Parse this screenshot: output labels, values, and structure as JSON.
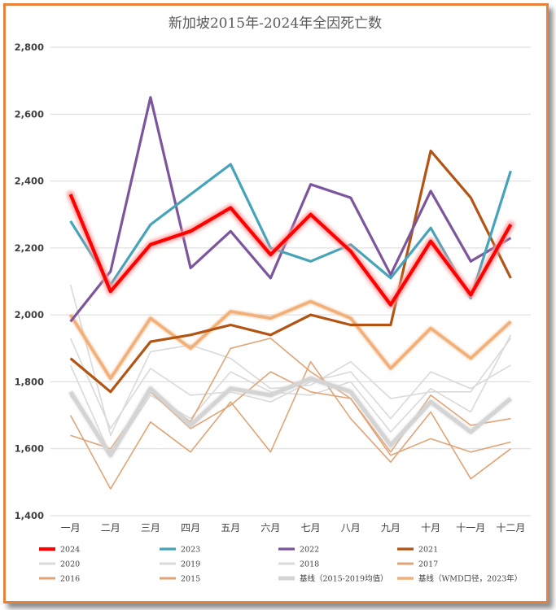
{
  "chart_data": {
    "type": "line",
    "title": "新加坡2015年-2024年全因死亡数",
    "xlabel": "",
    "ylabel": "",
    "ylim": [
      1400,
      2800
    ],
    "yticks": [
      1400,
      1600,
      1800,
      2000,
      2200,
      2400,
      2600,
      2800
    ],
    "ytick_labels": [
      "1,400",
      "1,600",
      "1,800",
      "2,000",
      "2,200",
      "2,400",
      "2,600",
      "2,800"
    ],
    "grid": true,
    "legend_position": "bottom",
    "categories": [
      "一月",
      "二月",
      "三月",
      "四月",
      "五月",
      "六月",
      "七月",
      "八月",
      "九月",
      "十月",
      "十一月",
      "十二月"
    ],
    "series": [
      {
        "name": "2020",
        "color": "#d9d9d9",
        "values": [
          2090,
          1640,
          1890,
          1910,
          1870,
          1780,
          1790,
          1860,
          1750,
          1770,
          1770,
          1930
        ]
      },
      {
        "name": "2019",
        "color": "#d9d9d9",
        "values": [
          1930,
          1660,
          1840,
          1760,
          1770,
          1740,
          1800,
          1830,
          1690,
          1830,
          1780,
          1850
        ]
      },
      {
        "name": "2018",
        "color": "#d9d9d9",
        "values": [
          1850,
          1580,
          1760,
          1690,
          1830,
          1770,
          1760,
          1800,
          1650,
          1780,
          1710,
          1940
        ]
      },
      {
        "name": "2017",
        "color": "#e0a477",
        "values": [
          1760,
          1590,
          1770,
          1680,
          1900,
          1930,
          1830,
          1750,
          1590,
          1760,
          1670,
          1690
        ]
      },
      {
        "name": "2016",
        "color": "#e0a477",
        "values": [
          1700,
          1480,
          1680,
          1590,
          1740,
          1590,
          1860,
          1690,
          1560,
          1710,
          1510,
          1600
        ]
      },
      {
        "name": "2015",
        "color": "#e0a477",
        "values": [
          1640,
          1600,
          1770,
          1660,
          1730,
          1830,
          1770,
          1750,
          1580,
          1630,
          1590,
          1620
        ]
      },
      {
        "name": "基线（2015-2019均值）",
        "color": "#d4d4d4",
        "values": [
          1770,
          1580,
          1780,
          1670,
          1780,
          1760,
          1810,
          1770,
          1610,
          1740,
          1650,
          1750
        ]
      },
      {
        "name": "基线（WMD口径，2023年）",
        "color": "#f1b07a",
        "values": [
          2000,
          1810,
          1990,
          1900,
          2010,
          1990,
          2040,
          1990,
          1840,
          1960,
          1870,
          1980
        ]
      },
      {
        "name": "2021",
        "color": "#b35414",
        "values": [
          1870,
          1770,
          1920,
          1940,
          1970,
          1940,
          2000,
          1970,
          1970,
          2490,
          2350,
          2110
        ]
      },
      {
        "name": "2022",
        "color": "#7c559d",
        "values": [
          1980,
          2130,
          2650,
          2140,
          2250,
          2110,
          2390,
          2350,
          2120,
          2370,
          2160,
          2230
        ]
      },
      {
        "name": "2023",
        "color": "#45a3ba",
        "values": [
          2280,
          2090,
          2270,
          2360,
          2450,
          2200,
          2160,
          2210,
          2110,
          2260,
          2050,
          2430
        ]
      },
      {
        "name": "2024",
        "color": "#ff0000",
        "values": [
          2360,
          2070,
          2210,
          2250,
          2320,
          2180,
          2300,
          2190,
          2030,
          2220,
          2060,
          2270
        ]
      }
    ],
    "legend": [
      [
        "2024",
        "2023",
        "2022",
        "2021"
      ],
      [
        "2020",
        "2019",
        "2018",
        "2017"
      ],
      [
        "2016",
        "2015",
        "基线（2015-2019均值）",
        "基线（WMD口径，2023年）"
      ]
    ]
  }
}
